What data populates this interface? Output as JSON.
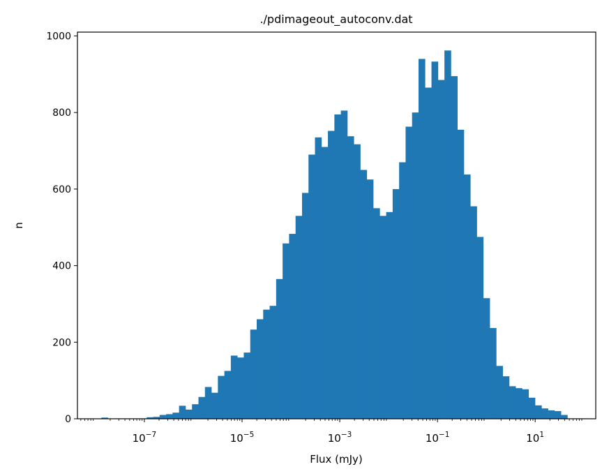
{
  "chart_data": {
    "type": "bar",
    "title": "./pdimageout_autoconv.dat",
    "xlabel": "Flux (mJy)",
    "ylabel": "n",
    "xscale": "log",
    "xlim_log10": [
      -8.37,
      2.24
    ],
    "ylim": [
      0,
      1010
    ],
    "grid": false,
    "bar_color": "#1f77b4",
    "y_ticks": [
      {
        "value": 0,
        "label": "0"
      },
      {
        "value": 200,
        "label": "200"
      },
      {
        "value": 400,
        "label": "400"
      },
      {
        "value": 600,
        "label": "600"
      },
      {
        "value": 800,
        "label": "800"
      },
      {
        "value": 1000,
        "label": "1000"
      }
    ],
    "x_ticks": [
      {
        "log10": -7,
        "base": "10",
        "exp": "−7"
      },
      {
        "log10": -5,
        "base": "10",
        "exp": "−5"
      },
      {
        "log10": -3,
        "base": "10",
        "exp": "−3"
      },
      {
        "log10": -1,
        "base": "10",
        "exp": "−1"
      },
      {
        "log10": 1,
        "base": "10",
        "exp": "1"
      }
    ],
    "bins_log10_start": -7.88,
    "bins_log10_width": 0.1325,
    "values": [
      3,
      0,
      1,
      1,
      1,
      1,
      1,
      4,
      5,
      10,
      12,
      16,
      34,
      24,
      38,
      57,
      83,
      68,
      112,
      125,
      165,
      160,
      173,
      233,
      260,
      285,
      295,
      365,
      458,
      483,
      530,
      590,
      690,
      735,
      710,
      752,
      795,
      805,
      738,
      717,
      650,
      625,
      550,
      530,
      540,
      600,
      670,
      763,
      800,
      940,
      865,
      933,
      885,
      962,
      895,
      755,
      638,
      555,
      475,
      315,
      237,
      138,
      111,
      85,
      80,
      77,
      55,
      35,
      27,
      22,
      20,
      10,
      1,
      1,
      1
    ]
  }
}
